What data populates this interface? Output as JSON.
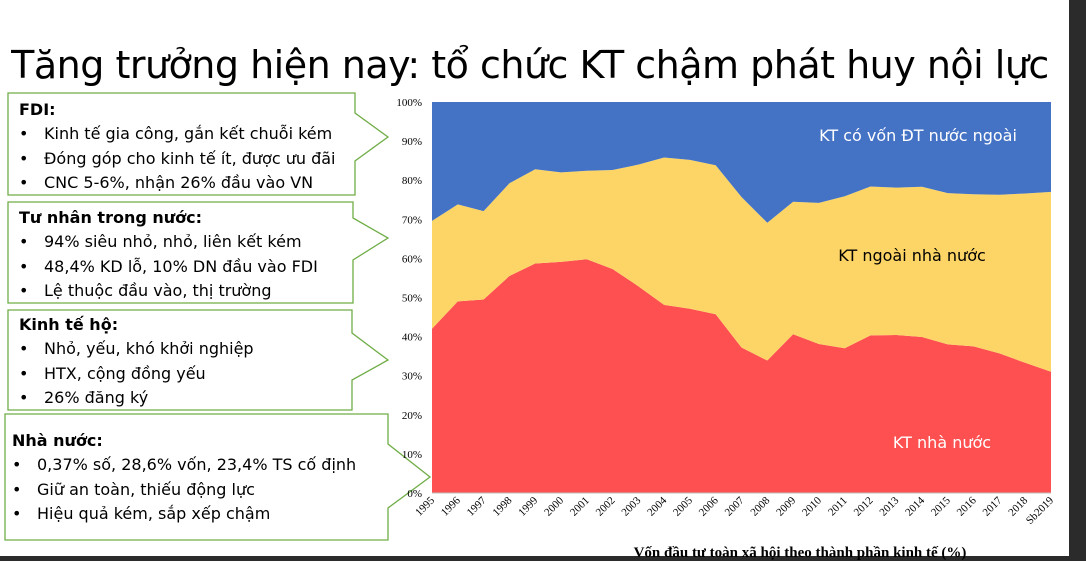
{
  "slide": {
    "title": "Tăng trưởng hiện nay: tổ chức KT chậm phát huy nội lực",
    "caption": "Vốn đầu tư toàn xã hội theo thành phần kinh tế (%)"
  },
  "callouts": [
    {
      "heading": "FDI:",
      "bullets": [
        "Kinh tế gia công, gắn kết chuỗi kém",
        "Đóng góp cho kinh tế ít, được ưu đãi",
        "CNC 5-6%, nhận 26% đầu vào VN"
      ]
    },
    {
      "heading": "Tư nhân trong nước:",
      "bullets": [
        "94% siêu nhỏ, nhỏ, liên kết kém",
        "48,4% KD lỗ, 10% DN đầu vào FDI",
        "Lệ thuộc đầu vào, thị trường"
      ]
    },
    {
      "heading": "Kinh tế hộ:",
      "bullets": [
        "Nhỏ, yếu, khó khởi nghiệp",
        "HTX, cộng đồng yếu",
        "26% đăng ký"
      ]
    },
    {
      "heading": "Nhà nước:",
      "bullets": [
        "0,37% số, 28,6% vốn, 23,4% TS cố định",
        "Giữ an toàn, thiếu động lực",
        "Hiệu quả kém, sắp xếp chậm"
      ]
    }
  ],
  "colors": {
    "state": "#fe5050",
    "nonstate": "#fdd566",
    "fdi": "#4472c4",
    "border": "#70ad47"
  },
  "chart_data": {
    "type": "area",
    "stacked": true,
    "percent": true,
    "categories": [
      "1995",
      "1996",
      "1997",
      "1998",
      "1999",
      "2000",
      "2001",
      "2002",
      "2003",
      "2004",
      "2005",
      "2006",
      "2007",
      "2008",
      "2009",
      "2010",
      "2011",
      "2012",
      "2013",
      "2014",
      "2015",
      "2016",
      "2017",
      "2018",
      "Sb2019"
    ],
    "series": [
      {
        "name": "KT nhà nước",
        "values": [
          42,
          49,
          49.5,
          55.5,
          58.7,
          59.1,
          59.8,
          57.3,
          52.9,
          48.1,
          47.1,
          45.7,
          37.2,
          33.9,
          40.6,
          38.1,
          37,
          40.3,
          40.4,
          39.9,
          38,
          37.5,
          35.7,
          33.3,
          31
        ]
      },
      {
        "name": "KT ngoài nhà nước",
        "values": [
          27.6,
          24.8,
          22.6,
          23.7,
          24.1,
          22.9,
          22.6,
          25.3,
          31.1,
          37.7,
          38.1,
          38.1,
          38.5,
          35.2,
          33.9,
          36.1,
          38.9,
          38.1,
          37.7,
          38.4,
          38.7,
          38.9,
          40.6,
          43.3,
          46
        ]
      },
      {
        "name": "KT có vốn ĐT nước ngoài",
        "values": [
          30.4,
          26.2,
          27.9,
          20.8,
          17.2,
          18,
          17.6,
          17.4,
          16,
          14.2,
          14.8,
          16.2,
          24.3,
          30.9,
          25.5,
          25.8,
          24.1,
          21.6,
          21.9,
          21.7,
          23.3,
          23.6,
          23.7,
          23.4,
          23
        ]
      }
    ],
    "ylim": [
      0,
      100
    ],
    "yticks": [
      "0%",
      "10%",
      "20%",
      "30%",
      "40%",
      "50%",
      "60%",
      "70%",
      "80%",
      "90%",
      "100%"
    ],
    "labels": {
      "fdi": "KT có vốn ĐT nước ngoài",
      "nonstate": "KT ngoài nhà nước",
      "state": "KT nhà nước"
    }
  }
}
